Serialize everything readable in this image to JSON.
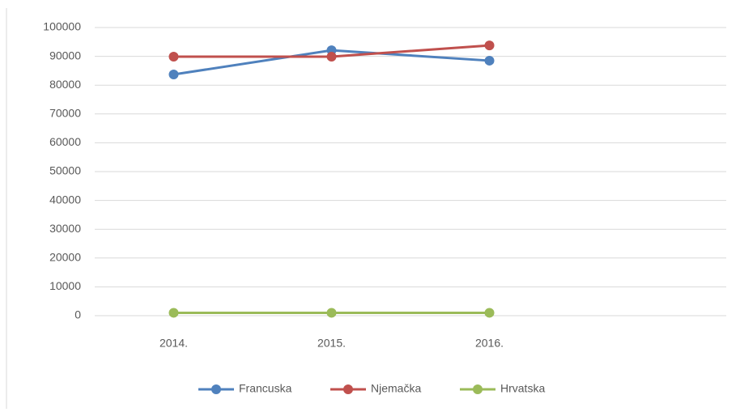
{
  "chart_data": {
    "type": "line",
    "categories": [
      "2014.",
      "2015.",
      "2016.",
      null
    ],
    "series": [
      {
        "name": "Francuska",
        "color": "#4f81bd",
        "values": [
          83700,
          92100,
          88500,
          null
        ]
      },
      {
        "name": "Njemačka",
        "color": "#c0504d",
        "values": [
          89900,
          89900,
          93800,
          null
        ]
      },
      {
        "name": "Hrvatska",
        "color": "#9bbb59",
        "values": [
          1000,
          1000,
          1000,
          null
        ]
      }
    ],
    "ylim": [
      0,
      100000
    ],
    "yticks": [
      0,
      10000,
      20000,
      30000,
      40000,
      50000,
      60000,
      70000,
      80000,
      90000,
      100000
    ],
    "grid": true,
    "legend": "bottom"
  }
}
